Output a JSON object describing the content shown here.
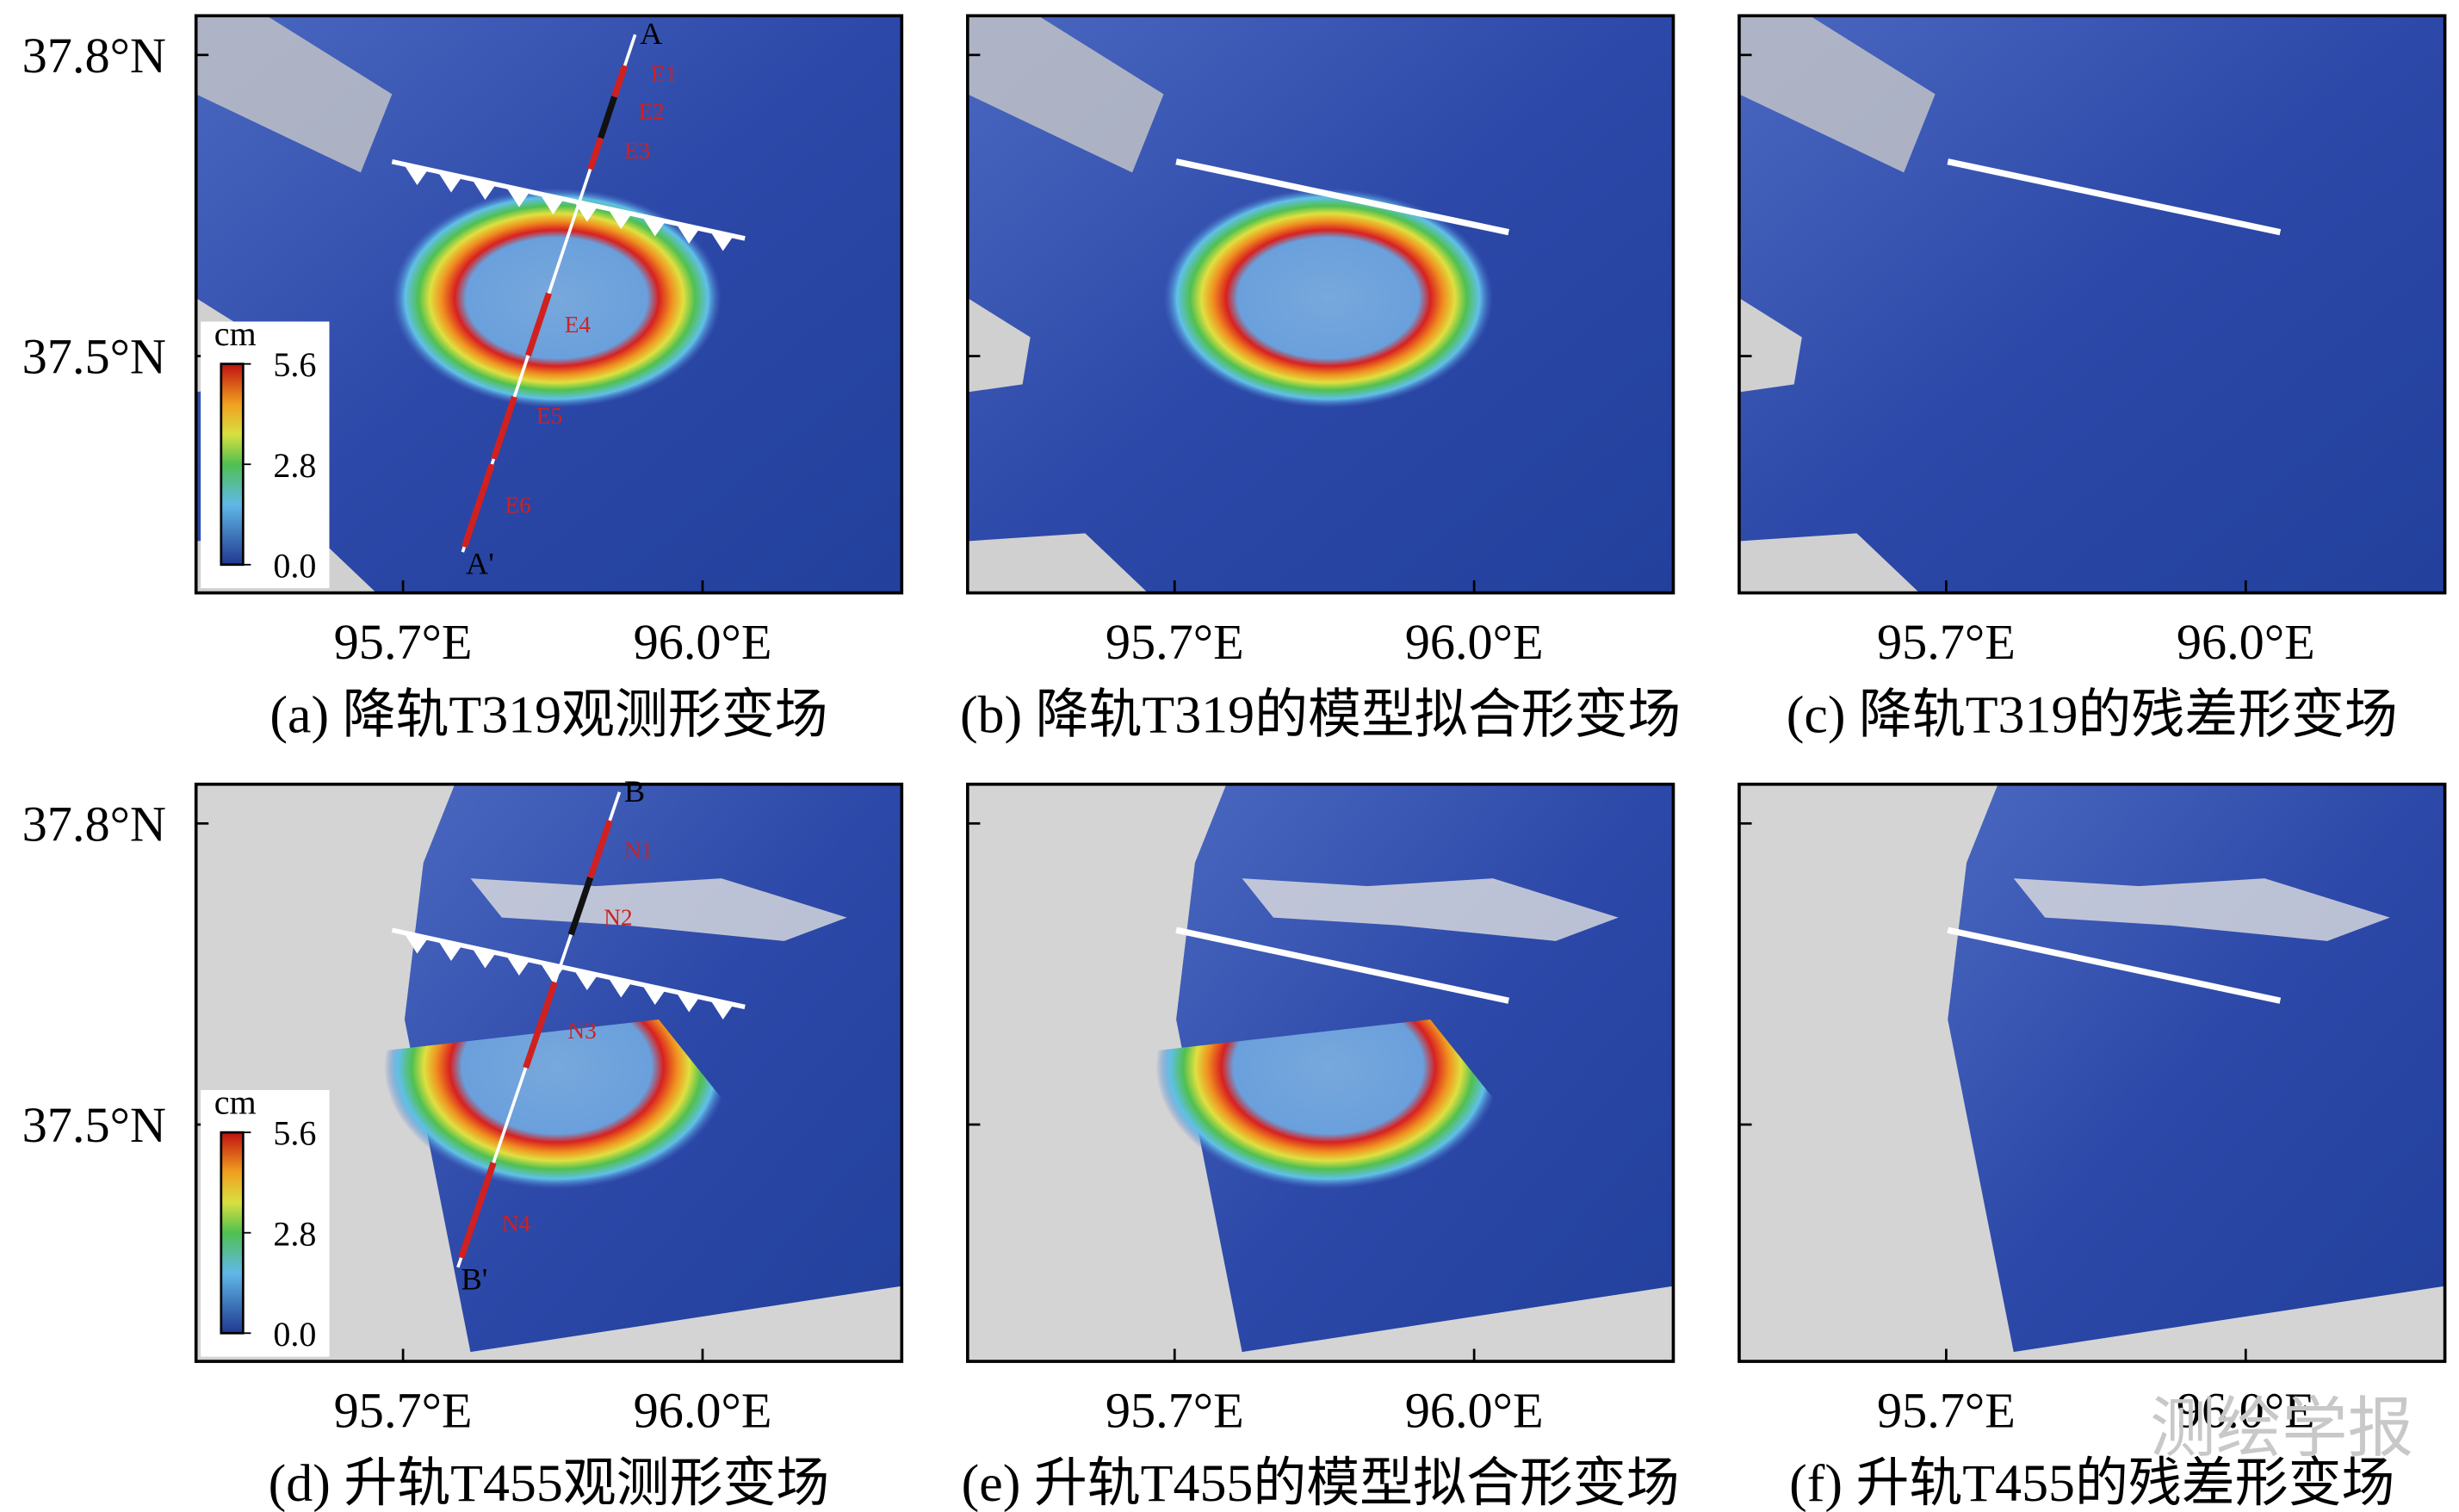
{
  "panels": [
    {
      "caption": "(a) 降轨T319观测形变场",
      "colorbar": {
        "unit": "cm",
        "labels": [
          "5.6",
          "2.8",
          "0.0"
        ]
      },
      "profile": {
        "start": "A",
        "end": "A'",
        "segments": [
          "E1",
          "E2",
          "E3",
          "E4",
          "E5",
          "E6"
        ]
      }
    },
    {
      "caption": "(b) 降轨T319的模型拟合形变场"
    },
    {
      "caption": "(c) 降轨T319的残差形变场"
    },
    {
      "caption": "(d) 升轨T455观测形变场",
      "colorbar": {
        "unit": "cm",
        "labels": [
          "5.6",
          "2.8",
          "0.0"
        ]
      },
      "profile": {
        "start": "B",
        "end": "B'",
        "segments": [
          "N1",
          "N2",
          "N3",
          "N4"
        ]
      }
    },
    {
      "caption": "(e) 升轨T455的模型拟合形变场"
    },
    {
      "caption": "(f) 升轨T455的残差形变场"
    }
  ],
  "xticks": [
    "95.7°E",
    "96.0°E"
  ],
  "yticks": [
    "37.8°N",
    "37.5°N"
  ],
  "watermark": "测绘学报"
}
